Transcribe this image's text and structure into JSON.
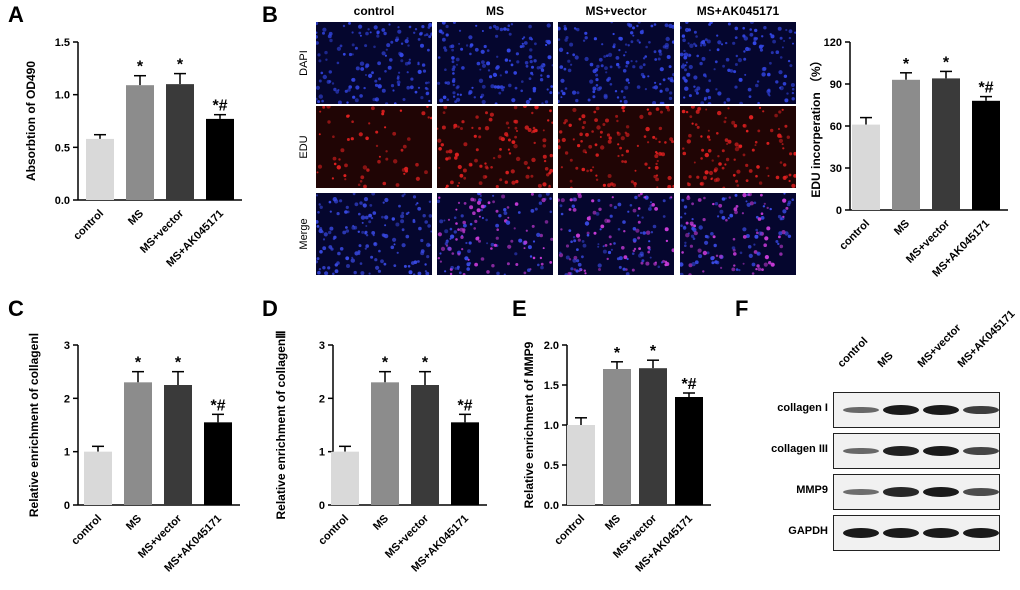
{
  "panels": {
    "A": "A",
    "B": "B",
    "C": "C",
    "D": "D",
    "E": "E",
    "F": "F"
  },
  "chart_data": [
    {
      "id": "A",
      "type": "bar",
      "categories": [
        "control",
        "MS",
        "MS+vector",
        "MS+AK045171"
      ],
      "values": [
        0.58,
        1.09,
        1.1,
        0.77
      ],
      "errors": [
        0.04,
        0.09,
        0.1,
        0.04
      ],
      "significance": [
        "",
        "*",
        "*",
        "*#"
      ],
      "ylabel": "Absorbtion of OD490",
      "ylim": [
        0,
        1.5
      ],
      "yticks": [
        "0.0",
        "0.5",
        "1.0",
        "1.5"
      ],
      "ytick_values": [
        0,
        0.5,
        1.0,
        1.5
      ],
      "colors": [
        "#d9d9d9",
        "#8c8c8c",
        "#3a3a3a",
        "#000000"
      ]
    },
    {
      "id": "B_graph",
      "type": "bar",
      "categories": [
        "control",
        "MS",
        "MS+vector",
        "MS+AK045171"
      ],
      "values": [
        61,
        93,
        94,
        78
      ],
      "errors": [
        5,
        5,
        5,
        3
      ],
      "significance": [
        "",
        "*",
        "*",
        "*#"
      ],
      "ylabel": "EDU incorperation （%）",
      "ylim": [
        0,
        120
      ],
      "yticks": [
        "0",
        "30",
        "60",
        "90",
        "120"
      ],
      "ytick_values": [
        0,
        30,
        60,
        90,
        120
      ],
      "colors": [
        "#d9d9d9",
        "#8c8c8c",
        "#3a3a3a",
        "#000000"
      ]
    },
    {
      "id": "C",
      "type": "bar",
      "categories": [
        "control",
        "MS",
        "MS+vector",
        "MS+AK045171"
      ],
      "values": [
        1.0,
        2.3,
        2.25,
        1.55
      ],
      "errors": [
        0.1,
        0.2,
        0.25,
        0.15
      ],
      "significance": [
        "",
        "*",
        "*",
        "*#"
      ],
      "ylabel": "Relative enrichment of collagenⅠ",
      "ylim": [
        0,
        3
      ],
      "yticks": [
        "0",
        "1",
        "2",
        "3"
      ],
      "ytick_values": [
        0,
        1,
        2,
        3
      ],
      "colors": [
        "#d9d9d9",
        "#8c8c8c",
        "#3a3a3a",
        "#000000"
      ]
    },
    {
      "id": "D",
      "type": "bar",
      "categories": [
        "control",
        "MS",
        "MS+vector",
        "MS+AK045171"
      ],
      "values": [
        1.0,
        2.3,
        2.25,
        1.55
      ],
      "errors": [
        0.1,
        0.2,
        0.25,
        0.15
      ],
      "significance": [
        "",
        "*",
        "*",
        "*#"
      ],
      "ylabel": "Relative enrichment of collagenⅢ",
      "ylim": [
        0,
        3
      ],
      "yticks": [
        "0",
        "1",
        "2",
        "3"
      ],
      "ytick_values": [
        0,
        1,
        2,
        3
      ],
      "colors": [
        "#d9d9d9",
        "#8c8c8c",
        "#3a3a3a",
        "#000000"
      ]
    },
    {
      "id": "E",
      "type": "bar",
      "categories": [
        "control",
        "MS",
        "MS+vector",
        "MS+AK045171"
      ],
      "values": [
        1.0,
        1.7,
        1.71,
        1.35
      ],
      "errors": [
        0.09,
        0.09,
        0.1,
        0.05
      ],
      "significance": [
        "",
        "*",
        "*",
        "*#"
      ],
      "ylabel": "Relative enrichment of MMP9",
      "ylim": [
        0,
        2.0
      ],
      "yticks": [
        "0.0",
        "0.5",
        "1.0",
        "1.5",
        "2.0"
      ],
      "ytick_values": [
        0,
        0.5,
        1.0,
        1.5,
        2.0
      ],
      "colors": [
        "#d9d9d9",
        "#8c8c8c",
        "#3a3a3a",
        "#000000"
      ]
    }
  ],
  "microscopy": {
    "columns": [
      "control",
      "MS",
      "MS+vector",
      "MS+AK045171"
    ],
    "rows": [
      "DAPI",
      "EDU",
      "Merge"
    ]
  },
  "western_blot": {
    "lanes": [
      "control",
      "MS",
      "MS+vector",
      "MS+AK045171"
    ],
    "rows": [
      {
        "label": "collagen I",
        "intensity": [
          0.45,
          1.0,
          1.0,
          0.75
        ]
      },
      {
        "label": "collagen III",
        "intensity": [
          0.45,
          0.95,
          1.0,
          0.7
        ]
      },
      {
        "label": "MMP9",
        "intensity": [
          0.4,
          0.9,
          1.0,
          0.65
        ]
      },
      {
        "label": "GAPDH",
        "intensity": [
          1.0,
          1.0,
          1.0,
          1.0
        ]
      }
    ]
  }
}
